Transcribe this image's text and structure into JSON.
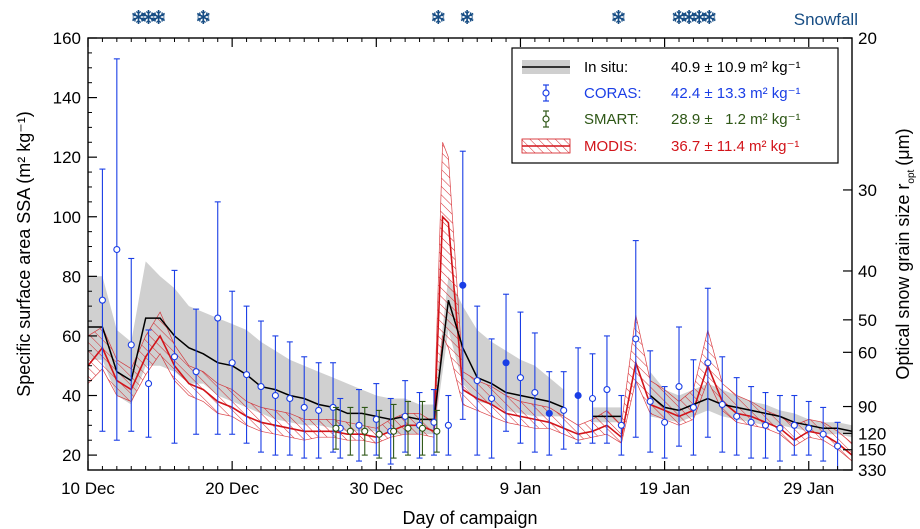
{
  "chart_data": {
    "type": "line",
    "xlabel": "Day of campaign",
    "ylabel": "Specific surface area SSA (m² kg⁻¹)",
    "y2label": "Optical snow grain size r",
    "y2label_sub": "opt",
    "y2label_unit": "(μm)",
    "xlim": [
      0,
      53
    ],
    "ylim": [
      15,
      160
    ],
    "x_ticks": [
      {
        "x": 0,
        "label": "10 Dec"
      },
      {
        "x": 10,
        "label": "20 Dec"
      },
      {
        "x": 20,
        "label": "30 Dec"
      },
      {
        "x": 30,
        "label": "9 Jan"
      },
      {
        "x": 40,
        "label": "19 Jan"
      },
      {
        "x": 50,
        "label": "29 Jan"
      }
    ],
    "y_ticks": [
      20,
      40,
      60,
      80,
      100,
      120,
      140,
      160
    ],
    "y2_ticks": [
      {
        "ssa": 163.5,
        "label": "20"
      },
      {
        "ssa": 109,
        "label": "30"
      },
      {
        "ssa": 81.8,
        "label": "40"
      },
      {
        "ssa": 65.4,
        "label": "50"
      },
      {
        "ssa": 54.5,
        "label": "60"
      },
      {
        "ssa": 36.3,
        "label": "90"
      },
      {
        "ssa": 27.3,
        "label": "120"
      },
      {
        "ssa": 21.8,
        "label": "150"
      },
      {
        "ssa": 9.9,
        "label": "330"
      }
    ],
    "snowfall_label": "Snowfall",
    "snowfall_days": [
      3.5,
      4.2,
      4.9,
      8.0,
      24.3,
      26.3,
      36.8,
      41.0,
      41.7,
      42.4,
      43.1
    ],
    "legend": [
      {
        "key": "insitu",
        "name": "In situ:",
        "value": "40.9 ± 10.9 m² kg⁻¹",
        "color": "#000000"
      },
      {
        "key": "coras",
        "name": "CORAS:",
        "value": "42.4 ± 13.3 m² kg⁻¹",
        "color": "#1a3ee6"
      },
      {
        "key": "smart",
        "name": "SMART:",
        "value": "28.9 ±   1.2 m² kg⁻¹",
        "color": "#2e5716"
      },
      {
        "key": "modis",
        "name": "MODIS:",
        "value": "36.7 ± 11.4 m² kg⁻¹",
        "color": "#d2141a"
      }
    ],
    "insitu": {
      "x": [
        0,
        1,
        2,
        3,
        4,
        5,
        6,
        7,
        8,
        9,
        10,
        11,
        12,
        13,
        14,
        15,
        16,
        17,
        18,
        19,
        20,
        21,
        22,
        23,
        24,
        25,
        26,
        27,
        28,
        29,
        30,
        31,
        32,
        33,
        null,
        35,
        36,
        37,
        null,
        39,
        40,
        41,
        42,
        43,
        44,
        45,
        46,
        47,
        48,
        49,
        50,
        51,
        52,
        53
      ],
      "values": [
        63,
        63,
        48,
        45,
        66,
        66,
        60,
        56,
        54,
        51,
        50,
        47,
        43,
        42,
        40,
        39,
        37,
        36,
        34,
        34,
        33,
        32,
        33,
        32,
        32,
        72,
        56,
        46,
        44,
        41,
        40,
        39,
        38,
        36,
        null,
        33,
        33,
        33,
        null,
        40,
        36,
        35,
        37,
        39,
        37,
        36,
        35,
        34,
        33,
        31,
        30,
        29,
        29,
        28
      ],
      "lower": [
        52,
        52,
        40,
        37,
        50,
        50,
        48,
        44,
        44,
        40,
        38,
        36,
        34,
        32,
        31,
        30,
        30,
        29,
        28,
        28,
        28,
        27,
        27,
        27,
        27,
        62,
        44,
        38,
        37,
        35,
        34,
        33,
        33,
        33,
        null,
        31,
        31,
        31,
        null,
        33,
        32,
        31,
        33,
        35,
        33,
        32,
        31,
        30,
        30,
        29,
        28,
        27,
        27,
        26
      ],
      "upper": [
        80,
        80,
        62,
        58,
        85,
        80,
        76,
        70,
        68,
        66,
        64,
        62,
        58,
        55,
        52,
        50,
        48,
        46,
        44,
        42,
        40,
        39,
        39,
        37,
        37,
        80,
        70,
        62,
        58,
        55,
        52,
        50,
        46,
        42,
        null,
        36,
        36,
        36,
        null,
        48,
        42,
        40,
        42,
        44,
        42,
        40,
        38,
        37,
        35,
        34,
        32,
        31,
        31,
        30
      ]
    },
    "coras": {
      "x": [
        1,
        2,
        3,
        4.2,
        6,
        7.5,
        9,
        10,
        11,
        12,
        13,
        14,
        15,
        16,
        17,
        17.5,
        18.8,
        20,
        21,
        22,
        23,
        24,
        25,
        26,
        27,
        28,
        29,
        30,
        31,
        32,
        33,
        34,
        35,
        36,
        37,
        38,
        39,
        40,
        41,
        42,
        43,
        44,
        45,
        46,
        47,
        48,
        49,
        50,
        51,
        52
      ],
      "y": [
        72,
        89,
        57,
        44,
        53,
        48,
        66,
        51,
        47,
        43,
        40,
        39,
        36,
        35,
        36,
        29,
        30,
        32,
        28,
        33,
        30,
        31,
        30,
        77,
        45,
        39,
        51,
        46,
        41,
        34,
        35,
        40,
        39,
        42,
        30,
        59,
        38,
        31,
        43,
        36,
        51,
        37,
        33,
        31,
        30,
        29,
        30,
        29,
        27,
        23
      ],
      "err": [
        44,
        64,
        29,
        18,
        29,
        21,
        39,
        24,
        23,
        22,
        20,
        19,
        17,
        16,
        15,
        10,
        12,
        12,
        11,
        12,
        11,
        11,
        10,
        45,
        25,
        20,
        23,
        22,
        20,
        14,
        13,
        16,
        15,
        18,
        10,
        33,
        17,
        12,
        20,
        16,
        25,
        16,
        13,
        12,
        11,
        11,
        10,
        9,
        9,
        8
      ],
      "filled": [
        false,
        false,
        false,
        false,
        false,
        false,
        false,
        false,
        false,
        false,
        false,
        false,
        false,
        false,
        false,
        false,
        false,
        false,
        false,
        false,
        false,
        false,
        false,
        true,
        false,
        false,
        true,
        false,
        false,
        true,
        false,
        true,
        false,
        false,
        false,
        false,
        false,
        false,
        false,
        false,
        false,
        false,
        false,
        false,
        false,
        false,
        false,
        false,
        false,
        false
      ]
    },
    "smart": {
      "x": [
        17.2,
        18.2,
        19.2,
        20.2,
        21.2,
        22.2,
        23.2,
        24.2
      ],
      "y": [
        29,
        28,
        28,
        27,
        28,
        29,
        29,
        28
      ],
      "err": [
        7,
        8,
        8,
        8,
        9,
        9,
        9,
        7
      ]
    },
    "modis": {
      "x": [
        0,
        1,
        2,
        3,
        4,
        5,
        6,
        7,
        8,
        9,
        10,
        11,
        12,
        13,
        14,
        15,
        16,
        17,
        18,
        19,
        20,
        21,
        22,
        23,
        24,
        24.6,
        25,
        26,
        27,
        28,
        29,
        30,
        31,
        32,
        33,
        34,
        35,
        36,
        37,
        38,
        39,
        40,
        41,
        42,
        43,
        44,
        45,
        46,
        47,
        48,
        49,
        50,
        51,
        52,
        53
      ],
      "values": [
        50,
        56,
        45,
        42,
        53,
        60,
        50,
        44,
        42,
        38,
        36,
        33,
        31,
        30,
        29,
        28,
        28,
        28,
        27,
        27,
        26,
        28,
        30,
        30,
        28,
        100,
        98,
        42,
        39,
        37,
        34,
        33,
        32,
        31,
        29,
        27,
        28,
        30,
        26,
        51,
        37,
        35,
        33,
        35,
        50,
        38,
        34,
        33,
        31,
        29,
        25,
        28,
        27,
        24,
        20
      ],
      "lower": [
        44,
        49,
        40,
        38,
        47,
        54,
        45,
        40,
        38,
        34,
        33,
        30,
        28,
        27,
        26,
        25,
        26,
        26,
        25,
        25,
        24,
        26,
        27,
        27,
        26,
        60,
        56,
        37,
        35,
        33,
        31,
        30,
        29,
        29,
        27,
        25,
        26,
        27,
        24,
        45,
        34,
        32,
        30,
        32,
        45,
        35,
        31,
        30,
        29,
        27,
        23,
        26,
        25,
        22,
        18
      ],
      "upper": [
        60,
        63,
        52,
        49,
        60,
        68,
        57,
        50,
        48,
        44,
        42,
        38,
        36,
        35,
        34,
        32,
        32,
        32,
        31,
        30,
        29,
        32,
        34,
        34,
        31,
        125,
        120,
        48,
        45,
        43,
        40,
        38,
        37,
        36,
        33,
        30,
        32,
        35,
        30,
        67,
        45,
        42,
        38,
        42,
        62,
        44,
        40,
        38,
        35,
        33,
        30,
        32,
        31,
        28,
        24
      ]
    }
  }
}
